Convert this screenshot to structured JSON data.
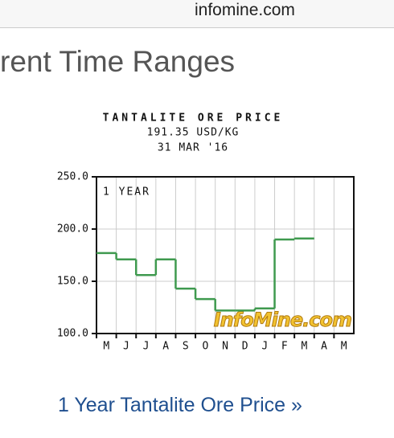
{
  "header": {
    "site": "infomine.com"
  },
  "heading": "rent Time Ranges",
  "chart_data": {
    "type": "line",
    "step": true,
    "title": "TANTALITE ORE PRICE",
    "subtitle": "191.35 USD/KG",
    "date": "31 MAR '16",
    "annotation": "1 YEAR",
    "watermark": "InfoMine.com",
    "categories": [
      "M",
      "J",
      "J",
      "A",
      "S",
      "O",
      "N",
      "D",
      "J",
      "F",
      "M",
      "A",
      "M"
    ],
    "series": [
      {
        "name": "Tantalite ore price",
        "color": "#3f9a4f",
        "values": [
          177,
          171,
          156,
          171,
          143,
          133,
          122,
          122,
          124,
          190,
          191,
          null,
          null
        ]
      }
    ],
    "ylim": [
      100,
      250
    ],
    "yticks": [
      {
        "value": 100,
        "label": "100.0"
      },
      {
        "value": 150,
        "label": "150.0"
      },
      {
        "value": 200,
        "label": "200.0"
      },
      {
        "value": 250,
        "label": "250.0"
      }
    ],
    "grid": true
  },
  "link": "1 Year Tantalite Ore Price »"
}
